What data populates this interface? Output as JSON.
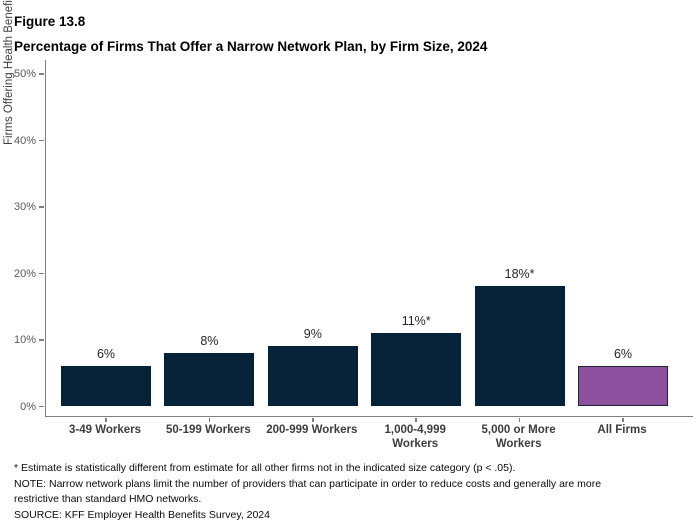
{
  "figure": {
    "number": "Figure 13.8",
    "title": "Percentage of Firms That Offer a Narrow Network Plan, by Firm Size, 2024"
  },
  "chart_data": {
    "type": "bar",
    "title": "Figure 13.8",
    "subtitle": "Percentage of Firms That Offer a Narrow Network Plan, by Firm Size, 2024",
    "xlabel": "",
    "ylabel": "Firms Offering Health Benefits",
    "ylim": [
      0,
      50
    ],
    "grid": false,
    "legend_position": "none",
    "ytick_values": [
      0,
      10,
      20,
      30,
      40,
      50
    ],
    "yticks": [
      "0%",
      "10%",
      "20%",
      "30%",
      "40%",
      "50%"
    ],
    "categories": [
      "3-49 Workers",
      "50-199 Workers",
      "200-999 Workers",
      "1,000-4,999 Workers",
      "5,000 or More Workers",
      "All Firms"
    ],
    "values": [
      6,
      8,
      9,
      11,
      18,
      6
    ],
    "bars": [
      {
        "category": "3-49 Workers",
        "value": 6,
        "label": "6%",
        "color": "#052238"
      },
      {
        "category": "50-199 Workers",
        "value": 8,
        "label": "8%",
        "color": "#052238"
      },
      {
        "category": "200-999 Workers",
        "value": 9,
        "label": "9%",
        "color": "#052238"
      },
      {
        "category": "1,000-4,999\nWorkers",
        "value": 11,
        "label": "11%*",
        "color": "#052238"
      },
      {
        "category": "5,000 or More\nWorkers",
        "value": 18,
        "label": "18%*",
        "color": "#052238"
      },
      {
        "category": "All Firms",
        "value": 6,
        "label": "6%",
        "color": "#8E51A0",
        "border": "#20242F"
      }
    ],
    "colors": {
      "bar": "#052238",
      "highlight": "#8E51A0",
      "highlight_border": "#20242F",
      "axis": "#7F7F7F",
      "tick_label": "#595959",
      "category_label": "#3D3D3D",
      "value_label": "#262626"
    }
  },
  "footnotes": {
    "asterisk": "* Estimate is statistically different from estimate for all other firms not in the indicated size category (p < .05).",
    "note": "NOTE: Narrow network plans limit the number of providers that can participate in order to reduce costs and generally are more restrictive than standard HMO networks.",
    "source": "SOURCE: KFF Employer Health Benefits Survey, 2024"
  }
}
